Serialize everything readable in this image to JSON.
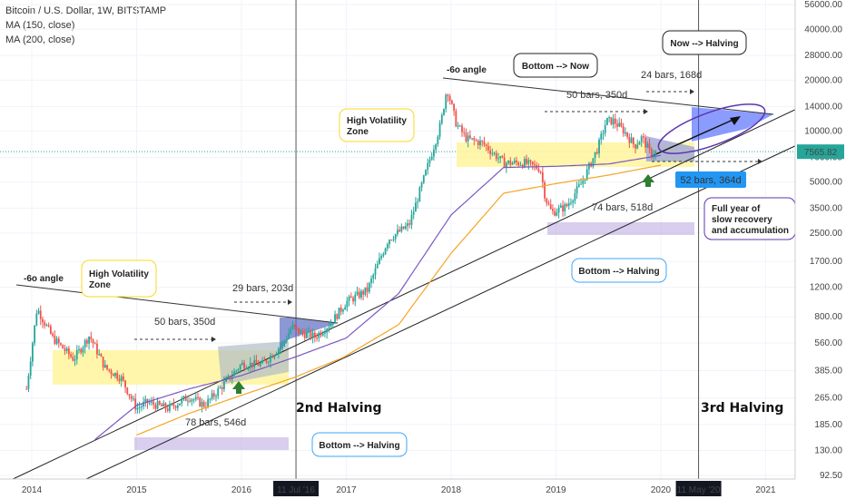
{
  "header": {
    "symbol": "Bitcoin / U.S. Dollar, 1W, BITSTAMP",
    "ma1": "MA (150, close)",
    "ma2": "MA (200, close)"
  },
  "colors": {
    "up": "#26a69a",
    "down": "#ef5350",
    "ma150": "#7e57c2",
    "ma200": "#f5a623",
    "yellow_zone": "#fff59d",
    "price_tag": "#26a69a",
    "bars_tag": "#2196f3"
  },
  "chart_data": {
    "type": "candlestick",
    "y_scale": "log",
    "y_ticks": [
      "56000.00",
      "40000.00",
      "28000.00",
      "20000.00",
      "14000.00",
      "10000.00",
      "7000.00",
      "5000.00",
      "3500.00",
      "2500.00",
      "1700.00",
      "1200.00",
      "800.00",
      "560.00",
      "385.00",
      "265.00",
      "185.00",
      "130.00",
      "92.50"
    ],
    "x_ticks": [
      "2014",
      "2015",
      "2016",
      "2017",
      "2018",
      "2019",
      "2020",
      "2021"
    ],
    "x_highlight_labels": [
      "11 Jul '16",
      "11 May '20"
    ],
    "current_price": "7565.82",
    "price_anchors": [
      [
        2013.95,
        300
      ],
      [
        2014.05,
        900
      ],
      [
        2014.2,
        600
      ],
      [
        2014.4,
        450
      ],
      [
        2014.55,
        620
      ],
      [
        2014.7,
        400
      ],
      [
        2014.85,
        350
      ],
      [
        2015.0,
        230
      ],
      [
        2015.1,
        250
      ],
      [
        2015.3,
        230
      ],
      [
        2015.5,
        270
      ],
      [
        2015.65,
        240
      ],
      [
        2015.85,
        330
      ],
      [
        2016.0,
        420
      ],
      [
        2016.2,
        420
      ],
      [
        2016.4,
        560
      ],
      [
        2016.48,
        700
      ],
      [
        2016.55,
        650
      ],
      [
        2016.7,
        610
      ],
      [
        2016.85,
        730
      ],
      [
        2017.0,
        980
      ],
      [
        2017.2,
        1150
      ],
      [
        2017.4,
        2300
      ],
      [
        2017.6,
        2800
      ],
      [
        2017.75,
        5500
      ],
      [
        2017.9,
        11000
      ],
      [
        2017.96,
        18000
      ],
      [
        2018.05,
        11000
      ],
      [
        2018.15,
        9000
      ],
      [
        2018.3,
        8500
      ],
      [
        2018.5,
        6500
      ],
      [
        2018.7,
        6500
      ],
      [
        2018.85,
        6000
      ],
      [
        2018.9,
        4000
      ],
      [
        2018.96,
        3300
      ],
      [
        2019.1,
        3600
      ],
      [
        2019.25,
        5000
      ],
      [
        2019.4,
        8000
      ],
      [
        2019.48,
        11500
      ],
      [
        2019.55,
        11500
      ],
      [
        2019.65,
        10000
      ],
      [
        2019.75,
        8200
      ],
      [
        2019.82,
        9200
      ],
      [
        2019.9,
        7400
      ],
      [
        2019.95,
        7500
      ]
    ],
    "ma150_anchors": [
      [
        2014.6,
        150
      ],
      [
        2015.0,
        240
      ],
      [
        2015.5,
        300
      ],
      [
        2016.0,
        360
      ],
      [
        2016.5,
        460
      ],
      [
        2017.0,
        600
      ],
      [
        2017.5,
        1100
      ],
      [
        2018.0,
        3200
      ],
      [
        2018.5,
        6100
      ],
      [
        2019.0,
        6200
      ],
      [
        2019.5,
        6400
      ],
      [
        2020.0,
        7200
      ]
    ],
    "ma200_anchors": [
      [
        2015.0,
        160
      ],
      [
        2015.5,
        215
      ],
      [
        2016.0,
        275
      ],
      [
        2016.5,
        350
      ],
      [
        2016.97,
        460
      ],
      [
        2017.5,
        720
      ],
      [
        2018.0,
        1900
      ],
      [
        2018.5,
        4300
      ],
      [
        2019.0,
        4900
      ],
      [
        2019.5,
        5500
      ],
      [
        2020.0,
        6300
      ]
    ]
  },
  "annotations": {
    "angle_left": "-6o angle",
    "angle_right": "-6o angle",
    "hv_left": "High Volatility\nZone",
    "hv_right": "High Volatility\nZone",
    "bars_50_left": "50 bars, 350d",
    "bars_29": "29 bars, 203d",
    "bars_78": "78 bars, 546d",
    "bars_50_right": "50 bars, 350d",
    "bars_24": "24 bars, 168d",
    "bars_74": "74 bars, 518d",
    "bars_52": "52 bars, 364d",
    "bottom_now": "Bottom --> Now",
    "now_halving": "Now --> Halving",
    "bottom_halving_right": "Bottom --> Halving",
    "bottom_halving_left": "Bottom --> Halving",
    "full_year": "Full year of\nslow recovery\nand accumulation",
    "halving_2": "2nd Halving",
    "halving_3": "3rd Halving"
  }
}
